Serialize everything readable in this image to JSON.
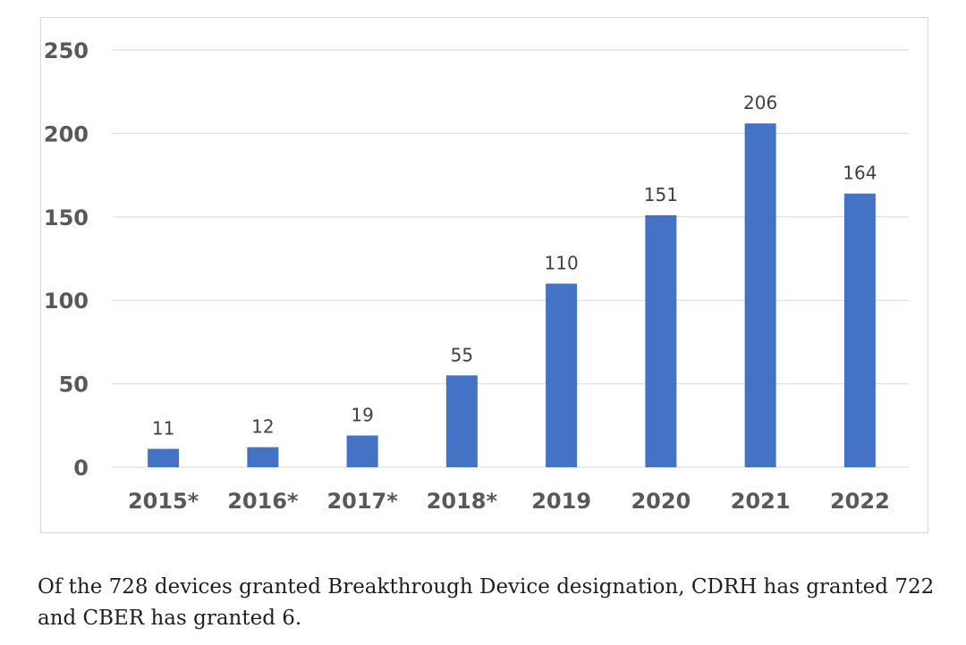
{
  "chart_data": {
    "type": "bar",
    "categories": [
      "2015*",
      "2016*",
      "2017*",
      "2018*",
      "2019",
      "2020",
      "2021",
      "2022"
    ],
    "values": [
      11,
      12,
      19,
      55,
      110,
      151,
      206,
      164
    ],
    "data_labels": [
      "11",
      "12",
      "19",
      "55",
      "110",
      "151",
      "206",
      "164"
    ],
    "title": "",
    "xlabel": "",
    "ylabel": "",
    "ylim": [
      0,
      250
    ],
    "y_ticks": [
      0,
      50,
      100,
      150,
      200,
      250
    ],
    "y_tick_labels": [
      "0",
      "50",
      "100",
      "150",
      "200",
      "250"
    ],
    "grid": true,
    "legend": "none",
    "bar_color": "#4472c4",
    "gridline_color": "#d9d9d9"
  },
  "caption": "Of the 728 devices granted Breakthrough Device designation, CDRH has granted 722 and CBER has granted 6."
}
